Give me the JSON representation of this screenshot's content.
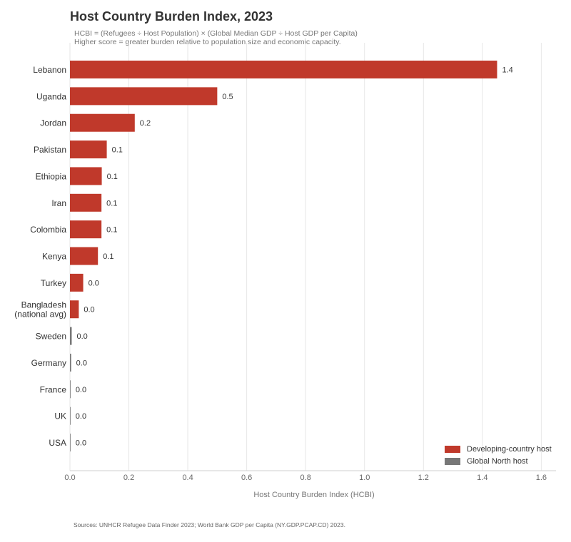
{
  "chart_data": {
    "type": "bar",
    "orientation": "horizontal",
    "title": "Host Country Burden Index, 2023",
    "subtitle": [
      "HCBI = (Refugees ÷ Host Population) × (Global Median GDP ÷ Host GDP per Capita)",
      "Higher score = greater burden relative to population size and economic capacity."
    ],
    "xlabel": "Host Country Burden Index (HCBI)",
    "ylabel": "",
    "xlim": [
      0,
      1.65
    ],
    "xticks": [
      0.0,
      0.2,
      0.4,
      0.6,
      0.8,
      1.0,
      1.2,
      1.4,
      1.6
    ],
    "xtick_labels": [
      "0.0",
      "0.2",
      "0.4",
      "0.6",
      "0.8",
      "1.0",
      "1.2",
      "1.4",
      "1.6"
    ],
    "grid": "vertical",
    "categories": [
      "Lebanon",
      "Uganda",
      "Jordan",
      "Pakistan",
      "Ethiopia",
      "Iran",
      "Colombia",
      "Kenya",
      "Turkey",
      "Bangladesh\n(national avg)",
      "Sweden",
      "Germany",
      "France",
      "UK",
      "USA"
    ],
    "values": [
      1.45,
      0.5,
      0.22,
      0.125,
      0.108,
      0.107,
      0.107,
      0.095,
      0.045,
      0.03,
      0.006,
      0.004,
      0.002,
      0.001,
      0.001
    ],
    "value_labels": [
      "1.4",
      "0.5",
      "0.2",
      "0.1",
      "0.1",
      "0.1",
      "0.1",
      "0.1",
      "0.0",
      "0.0",
      "0.0",
      "0.0",
      "0.0",
      "0.0",
      "0.0"
    ],
    "groups": [
      "Developing-country host",
      "Developing-country host",
      "Developing-country host",
      "Developing-country host",
      "Developing-country host",
      "Developing-country host",
      "Developing-country host",
      "Developing-country host",
      "Developing-country host",
      "Developing-country host",
      "Global North host",
      "Global North host",
      "Global North host",
      "Global North host",
      "Global North host"
    ],
    "legend": [
      {
        "name": "Developing-country host",
        "color": "#c0392b"
      },
      {
        "name": "Global North host",
        "color": "#777777"
      }
    ],
    "legend_position": "bottom-right"
  },
  "footer": "Sources: UNHCR Refugee Data Finder 2023; World Bank GDP per Capita (NY.GDP.PCAP.CD) 2023."
}
